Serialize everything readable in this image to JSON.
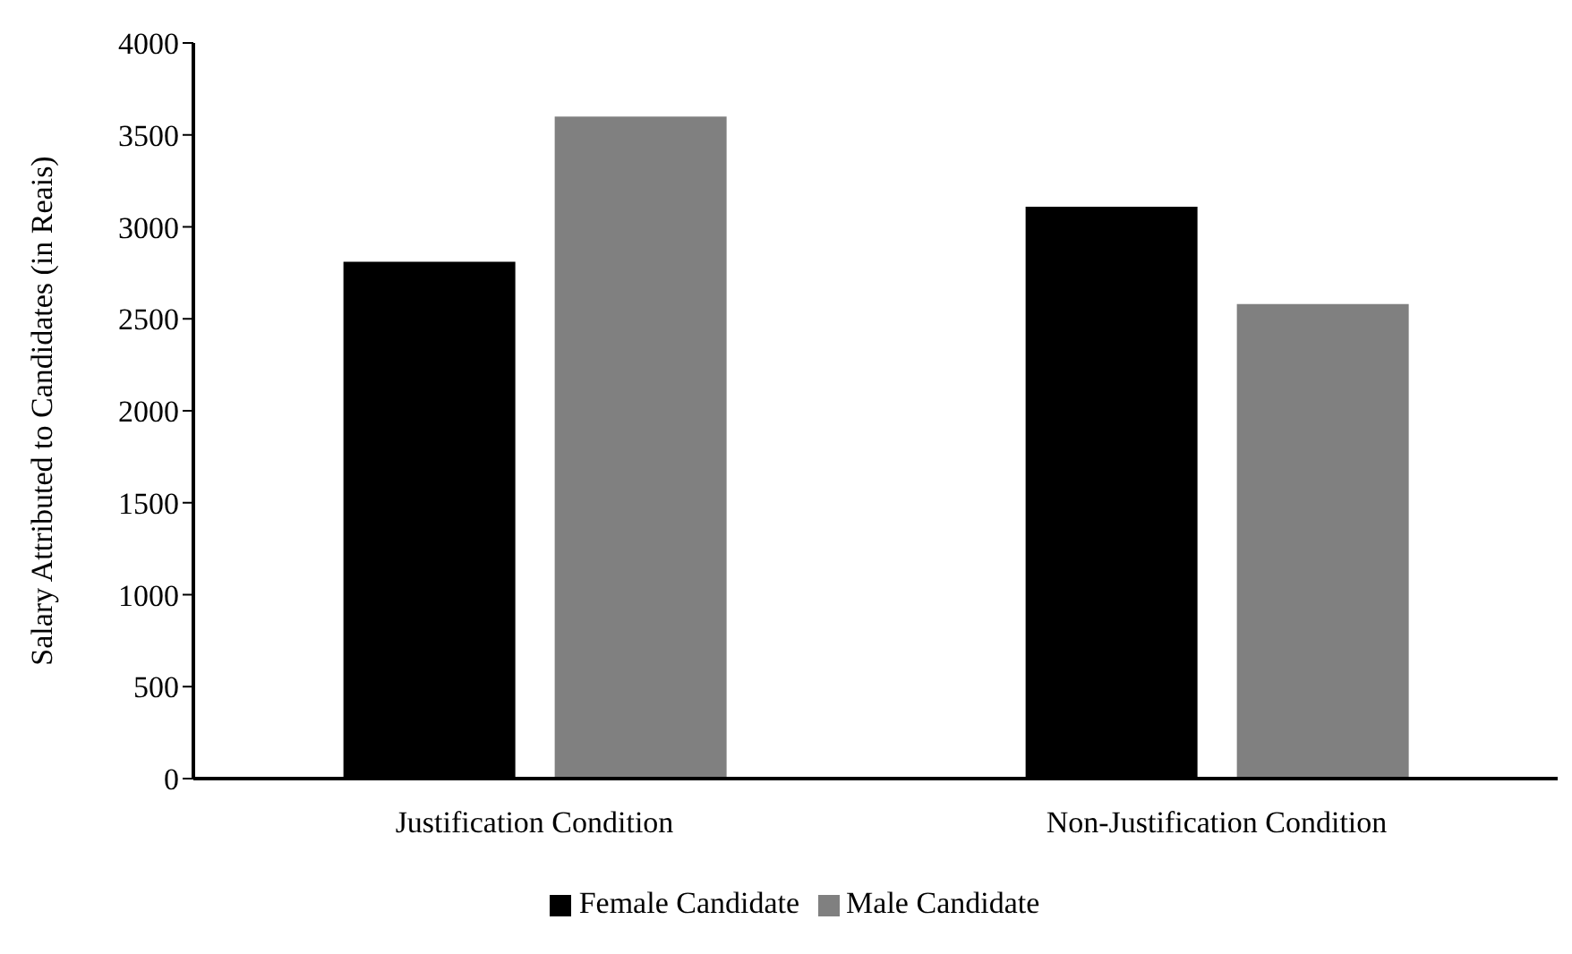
{
  "chart_data": {
    "type": "bar",
    "ylabel": "Salary Attributed to Candidates (in Reais)",
    "categories": [
      "Justification Condition",
      "Non-Justification Condition"
    ],
    "series": [
      {
        "name": "Female Candidate",
        "color": "#000000",
        "values": [
          2810,
          3110
        ]
      },
      {
        "name": "Male Candidate",
        "color": "#808080",
        "values": [
          3600,
          2580
        ]
      }
    ],
    "ylim": [
      0,
      4000
    ],
    "yticks": [
      0,
      500,
      1000,
      1500,
      2000,
      2500,
      3000,
      3500,
      4000
    ],
    "grid": false,
    "legend": "bottom"
  }
}
